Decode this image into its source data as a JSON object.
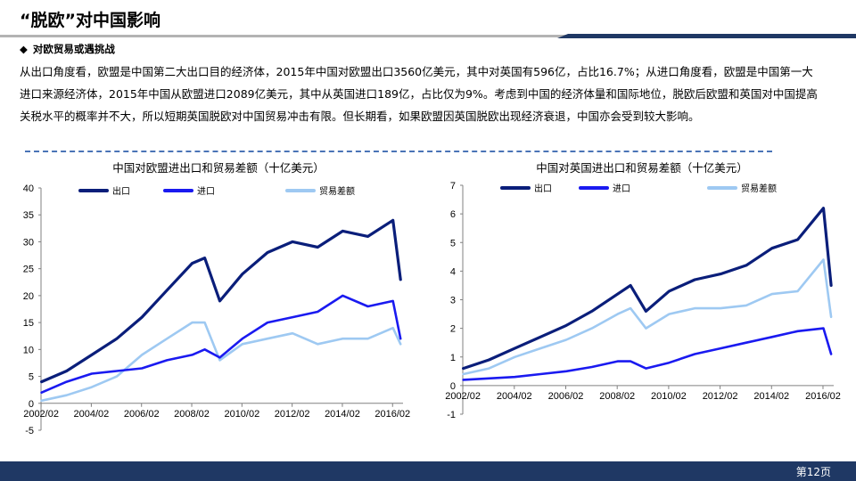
{
  "header": {
    "title": "“脱欧”对中国影响",
    "subheading": "对欧贸易或遇挑战",
    "bullet_glyph": "◆"
  },
  "body": {
    "paragraph": "从出口角度看，欧盟是中国第二大出口目的经济体，2015年中国对欧盟出口3560亿美元，其中对英国有596亿，占比16.7%；从进口角度看，欧盟是中国第一大进口来源经济体，2015年中国从欧盟进口2089亿美元，其中从英国进口189亿，占比仅为9%。考虑到中国的经济体量和国际地位，脱欧后欧盟和英国对中国提高关税水平的概率并不大，所以短期英国脱欧对中国贸易冲击有限。但长期看，如果欧盟因英国脱欧出现经济衰退，中国亦会受到较大影响。"
  },
  "footer": {
    "page": "第12页"
  },
  "colors": {
    "export": "#0a1e7a",
    "import": "#1a1af0",
    "balance": "#9ec9f2",
    "navy": "#1f3864"
  },
  "chart_data": [
    {
      "type": "line",
      "title": "中国对欧盟进出口和贸易差额（十亿美元）",
      "xlabel": "",
      "ylabel": "",
      "x_ticks": [
        "2002/02",
        "2004/02",
        "2006/02",
        "2008/02",
        "2010/02",
        "2012/02",
        "2014/02",
        "2016/02"
      ],
      "y_ticks": [
        "40",
        "35",
        "30",
        "25",
        "20",
        "15",
        "10",
        "5",
        "0",
        "-5"
      ],
      "ylim": [
        -5,
        40
      ],
      "xlim": [
        2002.08,
        2016.5
      ],
      "legend_position": "top",
      "x": [
        2002.1,
        2003.1,
        2004.1,
        2005.1,
        2006.1,
        2007.1,
        2008.1,
        2008.6,
        2009.2,
        2010.1,
        2011.1,
        2012.1,
        2013.1,
        2014.1,
        2015.1,
        2016.1,
        2016.4
      ],
      "series": [
        {
          "name": "出口",
          "color": "#0a1e7a",
          "width": 3.2,
          "values": [
            4,
            6,
            9,
            12,
            16,
            21,
            26,
            27,
            19,
            24,
            28,
            30,
            29,
            32,
            31,
            34,
            23
          ]
        },
        {
          "name": "进口",
          "color": "#1a1af0",
          "width": 2.6,
          "values": [
            2,
            4,
            5.5,
            6,
            6.5,
            8,
            9,
            10,
            8.5,
            12,
            15,
            16,
            17,
            20,
            18,
            19,
            12
          ]
        },
        {
          "name": "贸易差额",
          "color": "#9ec9f2",
          "width": 2.6,
          "values": [
            0.5,
            1.5,
            3,
            5,
            9,
            12,
            15,
            15,
            8,
            11,
            12,
            13,
            11,
            12,
            12,
            14,
            11
          ]
        }
      ]
    },
    {
      "type": "line",
      "title": "中国对英国进出口和贸易差额（十亿美元）",
      "xlabel": "",
      "ylabel": "",
      "x_ticks": [
        "2002/02",
        "2004/02",
        "2006/02",
        "2008/02",
        "2010/02",
        "2012/02",
        "2014/02",
        "2016/02"
      ],
      "y_ticks": [
        "7",
        "6",
        "5",
        "4",
        "3",
        "2",
        "1",
        "0",
        "-1"
      ],
      "ylim": [
        -1,
        7
      ],
      "xlim": [
        2002.08,
        2016.5
      ],
      "legend_position": "top",
      "x": [
        2002.1,
        2003.1,
        2004.1,
        2005.1,
        2006.1,
        2007.1,
        2008.1,
        2008.6,
        2009.2,
        2010.1,
        2011.1,
        2012.1,
        2013.1,
        2014.1,
        2015.1,
        2016.1,
        2016.4
      ],
      "series": [
        {
          "name": "出口",
          "color": "#0a1e7a",
          "width": 3.2,
          "values": [
            0.6,
            0.9,
            1.3,
            1.7,
            2.1,
            2.6,
            3.2,
            3.5,
            2.6,
            3.3,
            3.7,
            3.9,
            4.2,
            4.8,
            5.1,
            6.2,
            3.5
          ]
        },
        {
          "name": "进口",
          "color": "#1a1af0",
          "width": 2.6,
          "values": [
            0.2,
            0.25,
            0.3,
            0.4,
            0.5,
            0.65,
            0.85,
            0.85,
            0.6,
            0.8,
            1.1,
            1.3,
            1.5,
            1.7,
            1.9,
            2.0,
            1.1
          ]
        },
        {
          "name": "贸易差额",
          "color": "#9ec9f2",
          "width": 2.6,
          "values": [
            0.4,
            0.6,
            1.0,
            1.3,
            1.6,
            2.0,
            2.5,
            2.7,
            2.0,
            2.5,
            2.7,
            2.7,
            2.8,
            3.2,
            3.3,
            4.4,
            2.4
          ]
        }
      ]
    }
  ]
}
